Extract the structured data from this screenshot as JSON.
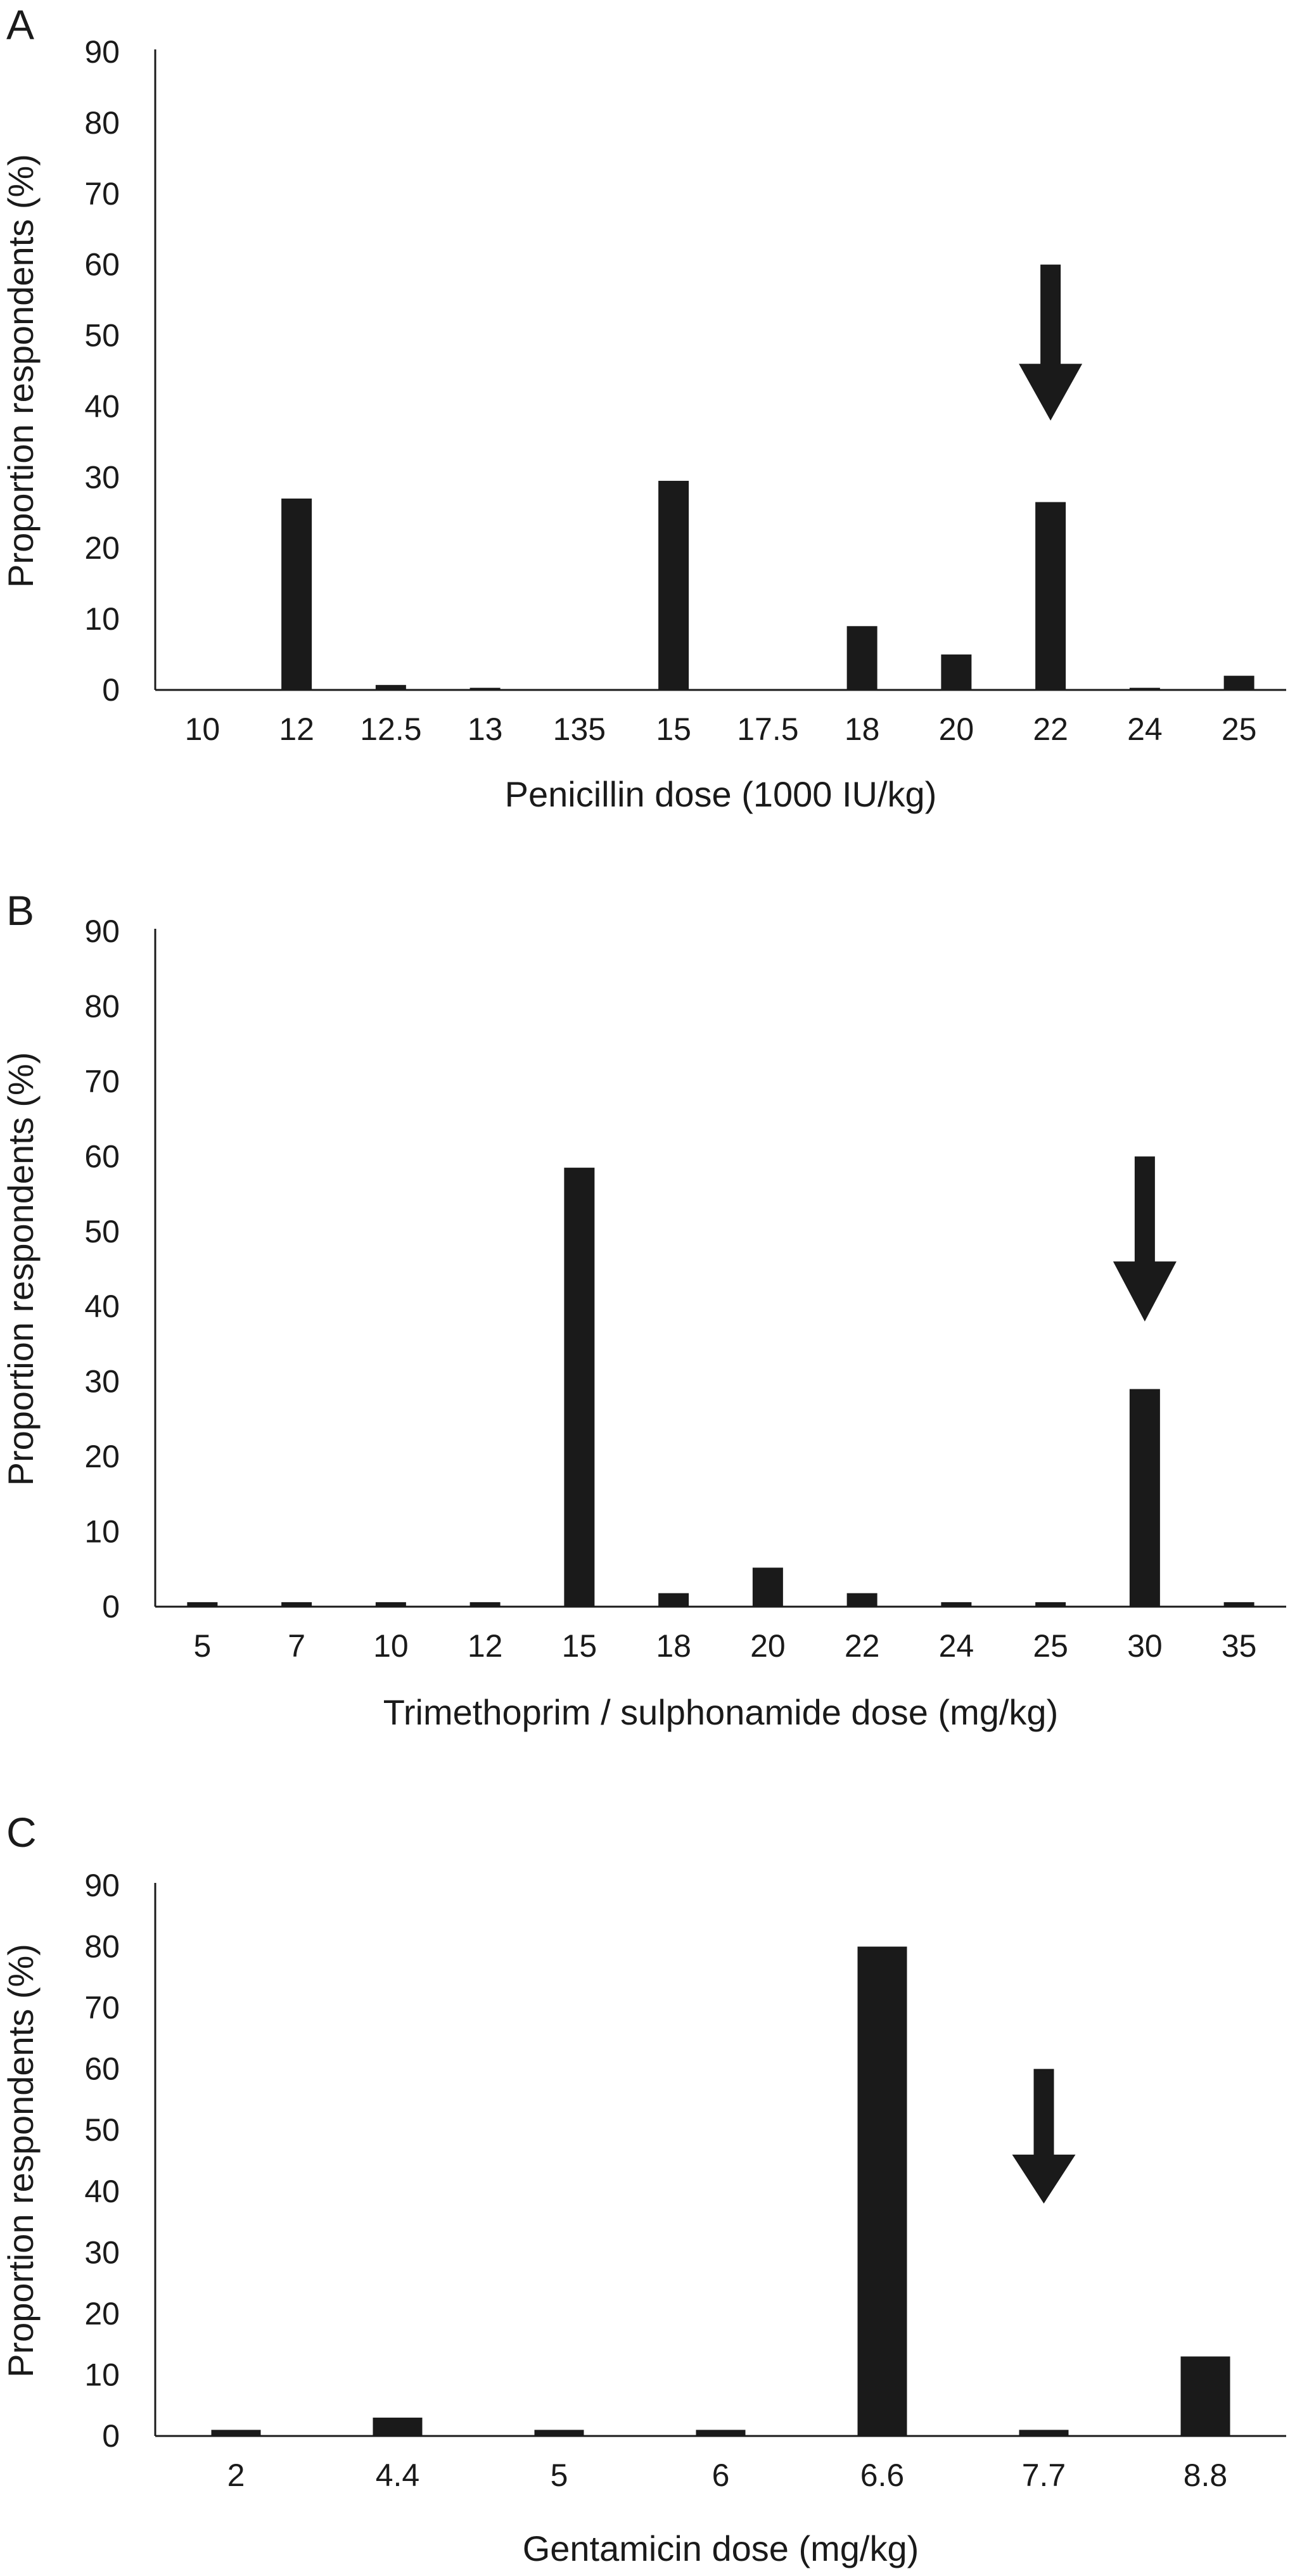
{
  "chart_data": [
    {
      "type": "bar",
      "panel": "A",
      "categories": [
        "10",
        "12",
        "12.5",
        "13",
        "135",
        "15",
        "17.5",
        "18",
        "20",
        "22",
        "24",
        "25"
      ],
      "values": [
        0,
        27,
        0.7,
        0.3,
        0,
        29.5,
        0,
        9,
        5,
        26.5,
        0.3,
        2
      ],
      "xlabel": "Penicillin dose (1000 IU/kg)",
      "ylabel": "Proportion respondents (%)",
      "ylim": [
        0,
        90
      ],
      "yticks": [
        "0",
        "10",
        "20",
        "30",
        "40",
        "50",
        "60",
        "70",
        "80",
        "90"
      ],
      "arrow_category": "22",
      "grid": false,
      "bar_color": "#1a1a1a"
    },
    {
      "type": "bar",
      "panel": "B",
      "categories": [
        "5",
        "7",
        "10",
        "12",
        "15",
        "18",
        "20",
        "22",
        "24",
        "25",
        "30",
        "35"
      ],
      "values": [
        0.6,
        0.6,
        0.6,
        0.6,
        58.5,
        1.8,
        5.2,
        1.8,
        0.6,
        0.6,
        29,
        0.6
      ],
      "xlabel": "Trimethoprim / sulphonamide dose (mg/kg)",
      "ylabel": "Proportion respondents (%)",
      "ylim": [
        0,
        90
      ],
      "yticks": [
        "0",
        "10",
        "20",
        "30",
        "40",
        "50",
        "60",
        "70",
        "80",
        "90"
      ],
      "arrow_category": "30",
      "grid": false,
      "bar_color": "#1a1a1a"
    },
    {
      "type": "bar",
      "panel": "C",
      "categories": [
        "2",
        "4.4",
        "5",
        "6",
        "6.6",
        "7.7",
        "8.8"
      ],
      "values": [
        1,
        3,
        1,
        1,
        80,
        1,
        13
      ],
      "xlabel": "Gentamicin dose (mg/kg)",
      "ylabel": "Proportion respondents (%)",
      "ylim": [
        0,
        90
      ],
      "yticks": [
        "0",
        "10",
        "20",
        "30",
        "40",
        "50",
        "60",
        "70",
        "80",
        "90"
      ],
      "arrow_category": "7.7",
      "grid": false,
      "bar_color": "#1a1a1a"
    }
  ]
}
